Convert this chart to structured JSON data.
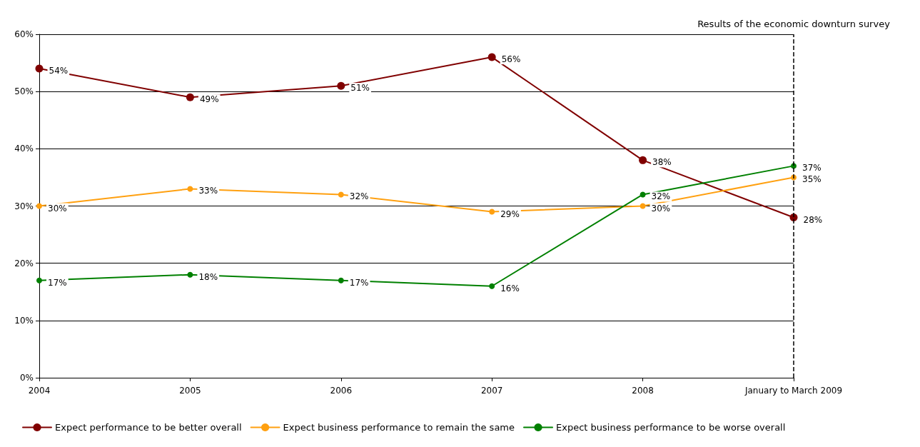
{
  "chart_data": {
    "type": "line",
    "categories": [
      "2004",
      "2005",
      "2006",
      "2007",
      "2008",
      "January to March 2009"
    ],
    "series": [
      {
        "name": "Expect performance to be better overall",
        "color": "#800000",
        "values": [
          54,
          49,
          51,
          56,
          38,
          28
        ],
        "value_labels": [
          "54%",
          "49%",
          "51%",
          "56%",
          "38%",
          "28%"
        ]
      },
      {
        "name": "Expect business performance to remain the same",
        "color": "#ffa010",
        "values": [
          30,
          33,
          32,
          29,
          30,
          35
        ],
        "value_labels": [
          "30%",
          "33%",
          "32%",
          "29%",
          "30%",
          "35%"
        ]
      },
      {
        "name": "Expect business performance to be worse overall",
        "color": "#008000",
        "values": [
          17,
          18,
          17,
          16,
          32,
          37
        ],
        "value_labels": [
          "17%",
          "18%",
          "17%",
          "16%",
          "32%",
          "37%"
        ]
      }
    ],
    "ylim": [
      0,
      60
    ],
    "yticks": [
      {
        "value": 0,
        "label": "0%"
      },
      {
        "value": 10,
        "label": "10%"
      },
      {
        "value": 20,
        "label": "20%"
      },
      {
        "value": 30,
        "label": "30%"
      },
      {
        "value": 40,
        "label": "40%"
      },
      {
        "value": 50,
        "label": "50%"
      },
      {
        "value": 60,
        "label": "60%"
      }
    ],
    "grid": "y",
    "legend": "bottom left",
    "marker": "circle",
    "line_style": "solid",
    "ref_lines": [
      {
        "axis": "x",
        "value": "January to March 2009",
        "label": "Results of the economic downturn survey",
        "color": "#000000",
        "line_style": "dashed"
      }
    ]
  }
}
